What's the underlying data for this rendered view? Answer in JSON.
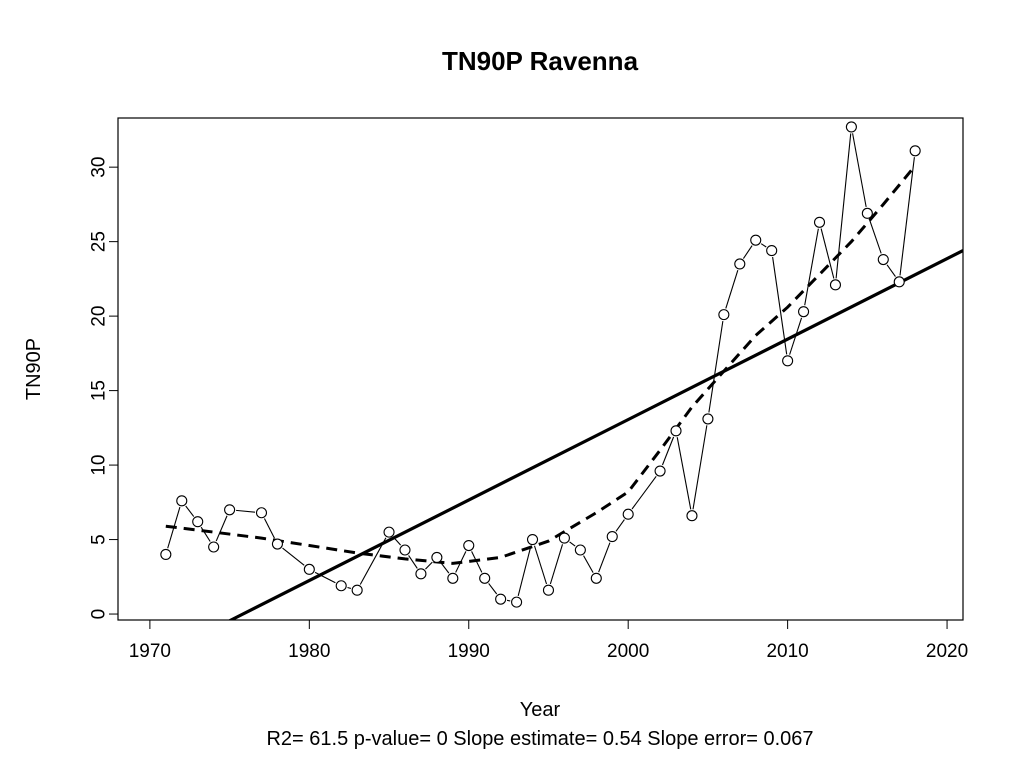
{
  "chart_data": {
    "type": "scatter",
    "title": "TN90P   Ravenna",
    "xlabel": "Year",
    "ylabel": "TN90P",
    "subtitle": "R2= 61.5  p-value= 0  Slope estimate= 0.54  Slope error= 0.067",
    "xlim": [
      1968,
      2021
    ],
    "ylim": [
      -0.4,
      33.3
    ],
    "x_ticks": [
      1970,
      1980,
      1990,
      2000,
      2010,
      2020
    ],
    "y_ticks": [
      0,
      5,
      10,
      15,
      20,
      25,
      30
    ],
    "grid": false,
    "series": [
      {
        "kind": "observed",
        "points": [
          [
            1971,
            4.0
          ],
          [
            1972,
            7.6
          ],
          [
            1973,
            6.2
          ],
          [
            1974,
            4.5
          ],
          [
            1975,
            7.0
          ],
          [
            1977,
            6.8
          ],
          [
            1978,
            4.7
          ],
          [
            1980,
            3.0
          ],
          [
            1982,
            1.9
          ],
          [
            1983,
            1.6
          ],
          [
            1985,
            5.5
          ],
          [
            1986,
            4.3
          ],
          [
            1987,
            2.7
          ],
          [
            1988,
            3.8
          ],
          [
            1989,
            2.4
          ],
          [
            1990,
            4.6
          ],
          [
            1991,
            2.4
          ],
          [
            1992,
            1.0
          ],
          [
            1993,
            0.8
          ],
          [
            1994,
            5.0
          ],
          [
            1995,
            1.6
          ],
          [
            1996,
            5.1
          ],
          [
            1997,
            4.3
          ],
          [
            1998,
            2.4
          ],
          [
            1999,
            5.2
          ],
          [
            2000,
            6.7
          ],
          [
            2002,
            9.6
          ],
          [
            2003,
            12.3
          ],
          [
            2004,
            6.6
          ],
          [
            2005,
            13.1
          ],
          [
            2006,
            20.1
          ],
          [
            2007,
            23.5
          ],
          [
            2008,
            25.1
          ],
          [
            2009,
            24.4
          ],
          [
            2010,
            17.0
          ],
          [
            2011,
            20.3
          ],
          [
            2012,
            26.3
          ],
          [
            2013,
            22.1
          ],
          [
            2014,
            32.7
          ],
          [
            2015,
            26.9
          ],
          [
            2016,
            23.8
          ],
          [
            2017,
            22.3
          ],
          [
            2018,
            31.1
          ]
        ]
      },
      {
        "kind": "smooth",
        "points": [
          [
            1971,
            5.9
          ],
          [
            1974,
            5.5
          ],
          [
            1977,
            5.1
          ],
          [
            1980,
            4.6
          ],
          [
            1983,
            4.1
          ],
          [
            1986,
            3.7
          ],
          [
            1989,
            3.4
          ],
          [
            1992,
            3.8
          ],
          [
            1995,
            4.9
          ],
          [
            1998,
            6.8
          ],
          [
            2000,
            8.2
          ],
          [
            2002,
            11.0
          ],
          [
            2004,
            13.9
          ],
          [
            2006,
            16.3
          ],
          [
            2008,
            18.7
          ],
          [
            2010,
            20.6
          ],
          [
            2012,
            22.8
          ],
          [
            2014,
            25.0
          ],
          [
            2016,
            27.5
          ],
          [
            2018,
            30.1
          ]
        ]
      },
      {
        "kind": "trend",
        "points": [
          [
            1975,
            -0.45
          ],
          [
            2021,
            24.4
          ]
        ]
      }
    ]
  }
}
